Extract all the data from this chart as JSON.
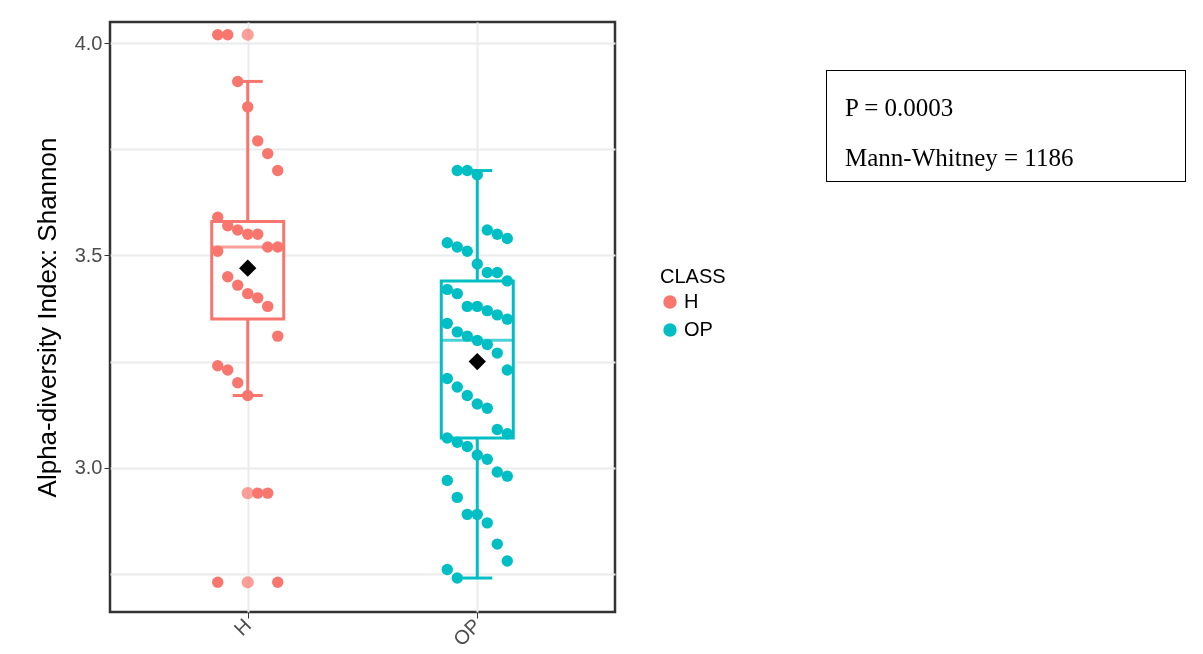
{
  "chart_data": {
    "type": "box",
    "ylabel": "Alpha-diversity Index: Shannon",
    "legend_title": "CLASS",
    "legend": "right",
    "grid": true,
    "categories": [
      "H",
      "OP"
    ],
    "ylim": [
      2.66,
      4.05
    ],
    "yticks": [
      {
        "value": 2.75,
        "label": null
      },
      {
        "value": 3,
        "label": "3.0"
      },
      {
        "value": 3.25,
        "label": null
      },
      {
        "value": 3.5,
        "label": "3.5"
      },
      {
        "value": 3.75,
        "label": null
      },
      {
        "value": 4,
        "label": "4.0"
      }
    ],
    "series": [
      {
        "name": "H",
        "color": "#f8766d",
        "type": "box",
        "boxes": [
          {
            "low": 3.17,
            "q1": 3.35,
            "median": 3.52,
            "q3": 3.58,
            "high": 3.91,
            "mean": 3.47,
            "outliers": [
              4.02,
              2.94,
              2.73
            ]
          },
          null
        ]
      },
      {
        "name": "OP",
        "color": "#00bfc4",
        "type": "box",
        "boxes": [
          null,
          {
            "low": 2.74,
            "q1": 3.07,
            "median": 3.3,
            "q3": 3.44,
            "high": 3.7,
            "mean": 3.25
          }
        ]
      },
      {
        "type": "scatter",
        "x": [
          "H",
          "H",
          "H",
          "H",
          "H",
          "H",
          "H",
          "H",
          "H",
          "H",
          "H",
          "H",
          "H",
          "H",
          "H",
          "H",
          "H",
          "H",
          "H",
          "H",
          "H",
          "H",
          "H",
          "H",
          "H",
          "H",
          "H",
          "H",
          "H",
          "OP",
          "OP",
          "OP",
          "OP",
          "OP",
          "OP",
          "OP",
          "OP",
          "OP",
          "OP",
          "OP",
          "OP",
          "OP",
          "OP",
          "OP",
          "OP",
          "OP",
          "OP",
          "OP",
          "OP",
          "OP",
          "OP",
          "OP",
          "OP",
          "OP",
          "OP",
          "OP",
          "OP",
          "OP",
          "OP",
          "OP",
          "OP",
          "OP",
          "OP",
          "OP",
          "OP",
          "OP",
          "OP",
          "OP",
          "OP",
          "OP",
          "OP",
          "OP",
          "OP",
          "OP",
          "OP",
          "OP",
          "OP",
          "OP",
          "OP"
        ],
        "colors": [
          "#f8766d",
          "#f8766d",
          "#f8766d",
          "#f8766d",
          "#f8766d",
          "#f8766d",
          "#f8766d",
          "#f8766d",
          "#f8766d",
          "#f8766d",
          "#f8766d",
          "#f8766d",
          "#f8766d",
          "#f8766d",
          "#f8766d",
          "#f8766d",
          "#f8766d",
          "#f8766d",
          "#f8766d",
          "#f8766d",
          "#f8766d",
          "#f8766d",
          "#f8766d",
          "#f8766d",
          "#f8766d",
          "#f8766d",
          "#f8766d",
          "#f8766d",
          "#f8766d",
          "#00bfc4",
          "#00bfc4",
          "#00bfc4",
          "#00bfc4",
          "#00bfc4",
          "#00bfc4",
          "#00bfc4",
          "#00bfc4",
          "#00bfc4",
          "#00bfc4",
          "#00bfc4",
          "#00bfc4",
          "#00bfc4",
          "#00bfc4",
          "#00bfc4",
          "#00bfc4",
          "#00bfc4",
          "#00bfc4",
          "#00bfc4",
          "#00bfc4",
          "#00bfc4",
          "#00bfc4",
          "#00bfc4",
          "#00bfc4",
          "#00bfc4",
          "#00bfc4",
          "#00bfc4",
          "#00bfc4",
          "#00bfc4",
          "#00bfc4",
          "#00bfc4",
          "#00bfc4",
          "#00bfc4",
          "#00bfc4",
          "#00bfc4",
          "#00bfc4",
          "#00bfc4",
          "#00bfc4",
          "#00bfc4",
          "#00bfc4",
          "#00bfc4",
          "#00bfc4",
          "#00bfc4",
          "#00bfc4",
          "#00bfc4",
          "#00bfc4",
          "#00bfc4",
          "#00bfc4",
          "#00bfc4",
          "#00bfc4"
        ],
        "values": [
          4.02,
          4.02,
          3.91,
          3.85,
          3.77,
          3.74,
          3.7,
          3.59,
          3.57,
          3.56,
          3.55,
          3.55,
          3.52,
          3.52,
          3.51,
          3.45,
          3.43,
          3.41,
          3.4,
          3.38,
          3.31,
          3.24,
          3.23,
          3.2,
          3.17,
          2.94,
          2.94,
          2.73,
          2.73,
          3.7,
          3.7,
          3.69,
          3.56,
          3.55,
          3.54,
          3.53,
          3.52,
          3.51,
          3.48,
          3.46,
          3.46,
          3.44,
          3.42,
          3.41,
          3.38,
          3.38,
          3.37,
          3.36,
          3.35,
          3.34,
          3.32,
          3.31,
          3.3,
          3.29,
          3.27,
          3.23,
          3.21,
          3.19,
          3.17,
          3.15,
          3.14,
          3.09,
          3.08,
          3.07,
          3.06,
          3.05,
          3.03,
          3.02,
          2.99,
          2.98,
          2.97,
          2.93,
          2.89,
          2.89,
          2.87,
          2.82,
          2.78,
          2.76,
          2.74
        ]
      }
    ],
    "annotations": [
      "P = 0.0003",
      "Mann-Whitney = 1186"
    ]
  }
}
